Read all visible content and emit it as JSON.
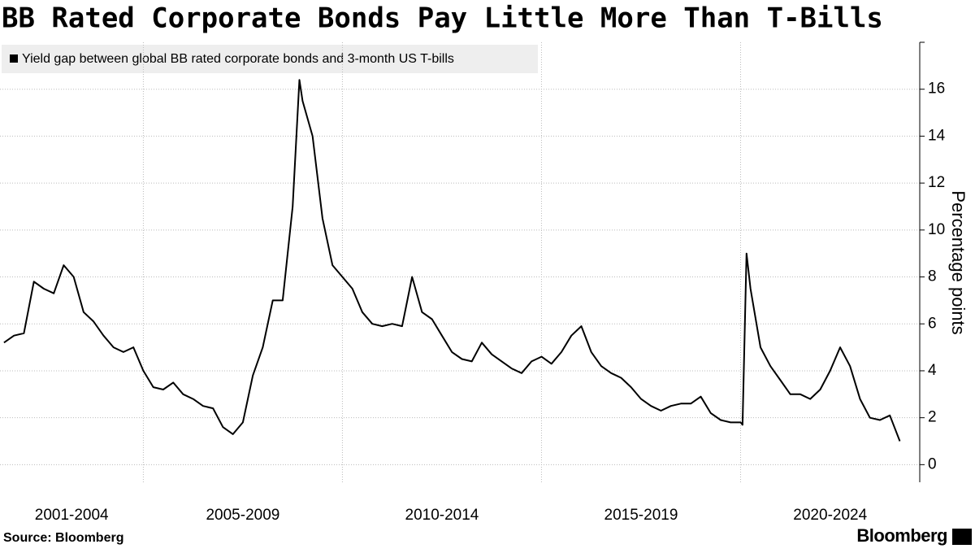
{
  "chart_data": {
    "type": "line",
    "title": "BB Rated Corporate Bonds Pay Little More Than T-Bills",
    "y_label": "Percentage points",
    "source": "Source: Bloomberg",
    "brand": "Bloomberg",
    "periods": [
      "2001-2004",
      "2005-2009",
      "2010-2014",
      "2015-2019",
      "2020-2024"
    ],
    "xlim": [
      2001.4,
      2024.5
    ],
    "xticks": [
      2005,
      2010,
      2015,
      2020
    ],
    "ylim": [
      -0.75,
      18
    ],
    "yticks": [
      0,
      2,
      4,
      6,
      8,
      10,
      12,
      14,
      16
    ],
    "grid": true,
    "series": [
      {
        "name": "Yield gap between global BB rated corporate bonds and 3-month US T-bills",
        "color": "#000000",
        "x": [
          2001.5,
          2001.75,
          2002.0,
          2002.25,
          2002.5,
          2002.75,
          2003.0,
          2003.25,
          2003.5,
          2003.75,
          2004.0,
          2004.25,
          2004.5,
          2004.75,
          2005.0,
          2005.25,
          2005.5,
          2005.75,
          2006.0,
          2006.25,
          2006.5,
          2006.75,
          2007.0,
          2007.25,
          2007.5,
          2007.75,
          2008.0,
          2008.25,
          2008.5,
          2008.75,
          2008.92,
          2009.0,
          2009.25,
          2009.5,
          2009.75,
          2010.0,
          2010.25,
          2010.5,
          2010.75,
          2011.0,
          2011.25,
          2011.5,
          2011.75,
          2012.0,
          2012.25,
          2012.5,
          2012.75,
          2013.0,
          2013.25,
          2013.5,
          2013.75,
          2014.0,
          2014.25,
          2014.5,
          2014.75,
          2015.0,
          2015.25,
          2015.5,
          2015.75,
          2016.0,
          2016.25,
          2016.5,
          2016.75,
          2017.0,
          2017.25,
          2017.5,
          2017.75,
          2018.0,
          2018.25,
          2018.5,
          2018.75,
          2019.0,
          2019.25,
          2019.5,
          2019.75,
          2020.0,
          2020.05,
          2020.15,
          2020.25,
          2020.5,
          2020.75,
          2021.0,
          2021.25,
          2021.5,
          2021.75,
          2022.0,
          2022.25,
          2022.5,
          2022.75,
          2023.0,
          2023.25,
          2023.5,
          2023.75,
          2024.0
        ],
        "values": [
          5.2,
          5.5,
          5.6,
          7.8,
          7.5,
          7.3,
          8.5,
          8.0,
          6.5,
          6.1,
          5.5,
          5.0,
          4.8,
          5.0,
          4.0,
          3.3,
          3.2,
          3.5,
          3.0,
          2.8,
          2.5,
          2.4,
          1.6,
          1.3,
          1.8,
          3.8,
          5.0,
          7.0,
          7.0,
          11.0,
          16.4,
          15.5,
          14.0,
          10.5,
          8.5,
          8.0,
          7.5,
          6.5,
          6.0,
          5.9,
          6.0,
          5.9,
          8.0,
          6.5,
          6.2,
          5.5,
          4.8,
          4.5,
          4.4,
          5.2,
          4.7,
          4.4,
          4.1,
          3.9,
          4.4,
          4.6,
          4.3,
          4.8,
          5.5,
          5.9,
          4.8,
          4.2,
          3.9,
          3.7,
          3.3,
          2.8,
          2.5,
          2.3,
          2.5,
          2.6,
          2.6,
          2.9,
          2.2,
          1.9,
          1.8,
          1.8,
          1.7,
          9.0,
          7.5,
          5.0,
          4.2,
          3.6,
          3.0,
          3.0,
          2.8,
          3.2,
          4.0,
          5.0,
          4.2,
          2.8,
          2.0,
          1.9,
          2.1,
          1.0
        ]
      }
    ]
  }
}
